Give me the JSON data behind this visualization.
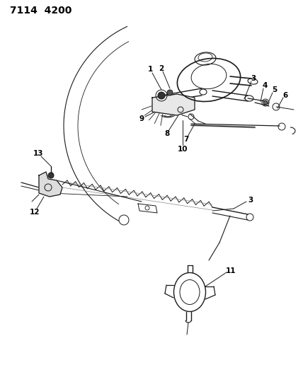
{
  "title": "7114  4200",
  "bg_color": "#ffffff",
  "line_color": "#1a1a1a",
  "title_fontsize": 10,
  "figsize": [
    4.28,
    5.33
  ],
  "dpi": 100
}
